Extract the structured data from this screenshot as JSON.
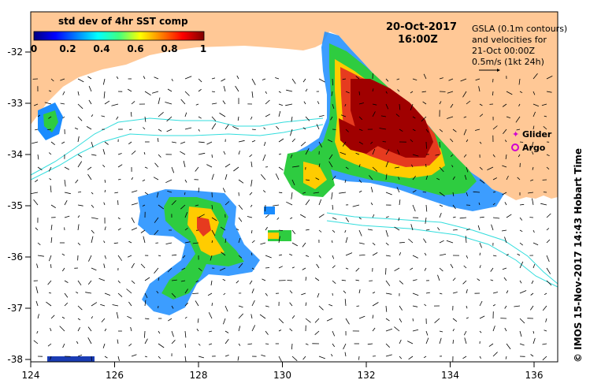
{
  "title": {
    "date": "20-Oct-2017",
    "time": "16:00Z"
  },
  "colorbar": {
    "label": "std dev of 4hr SST comp",
    "ticks": [
      "0",
      "0.2",
      "0.4",
      "0.6",
      "0.8",
      "1"
    ]
  },
  "info_box": {
    "line1": "GSLA (0.1m contours)",
    "line2": "and velocities for",
    "line3": "21-Oct 00:00Z",
    "line4": "0.5m/s (1kt 24h)"
  },
  "legend": {
    "glider": "Glider",
    "argo": "Argo",
    "glider_color": "#d000d0",
    "argo_color": "#d000d0"
  },
  "credit": "© IMOS 15-Nov-2017 14:43 Hobart Time",
  "axes": {
    "x_ticks": [
      "124",
      "126",
      "128",
      "130",
      "132",
      "134",
      "136"
    ],
    "y_ticks": [
      "-32",
      "-33",
      "-34",
      "-35",
      "-36",
      "-37",
      "-38"
    ]
  },
  "colors": {
    "land": "#ffc896",
    "contour": "#33dddd",
    "ocean": "#ffffff"
  }
}
